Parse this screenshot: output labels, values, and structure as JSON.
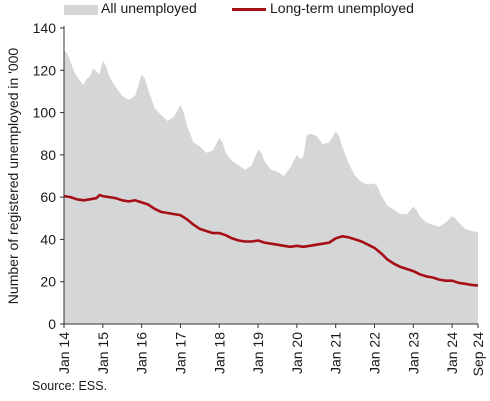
{
  "legend": {
    "all": "All unemployed",
    "long_term": "Long-term unemployed"
  },
  "source": "Source: ESS.",
  "chart_data": {
    "type": "area",
    "ylabel": "Number of registered unemployed in '000",
    "ylim": [
      0,
      140
    ],
    "yticks": [
      0,
      20,
      40,
      60,
      80,
      100,
      120,
      140
    ],
    "x_range": [
      "2014-01",
      "2024-09"
    ],
    "xticks": [
      "Jan 14",
      "Jan 15",
      "Jan 16",
      "Jan 17",
      "Jan 18",
      "Jan 19",
      "Jan 20",
      "Jan 21",
      "Jan 22",
      "Jan 23",
      "Jan 24",
      "Sep 24"
    ],
    "grid": false,
    "legend_position": "top",
    "colors": {
      "all": "#d4d6d8",
      "long_term": "#a50f15"
    },
    "series": [
      {
        "name": "All unemployed",
        "style": "area",
        "points": [
          [
            "2014-01",
            129.5
          ],
          [
            "2014-02",
            128
          ],
          [
            "2014-03",
            124
          ],
          [
            "2014-04",
            120
          ],
          [
            "2014-05",
            117
          ],
          [
            "2014-06",
            115
          ],
          [
            "2014-07",
            113
          ],
          [
            "2014-08",
            116
          ],
          [
            "2014-09",
            117
          ],
          [
            "2014-10",
            121
          ],
          [
            "2014-12",
            118
          ],
          [
            "2015-01",
            124.5
          ],
          [
            "2015-02",
            122
          ],
          [
            "2015-03",
            117
          ],
          [
            "2015-05",
            112
          ],
          [
            "2015-07",
            108
          ],
          [
            "2015-09",
            106
          ],
          [
            "2015-11",
            108
          ],
          [
            "2016-01",
            118
          ],
          [
            "2016-02",
            116
          ],
          [
            "2016-03",
            111
          ],
          [
            "2016-05",
            102
          ],
          [
            "2016-07",
            99
          ],
          [
            "2016-09",
            96
          ],
          [
            "2016-11",
            98
          ],
          [
            "2017-01",
            103.5
          ],
          [
            "2017-02",
            100
          ],
          [
            "2017-03",
            94
          ],
          [
            "2017-05",
            86
          ],
          [
            "2017-07",
            84
          ],
          [
            "2017-09",
            81
          ],
          [
            "2017-11",
            82
          ],
          [
            "2018-01",
            88
          ],
          [
            "2018-02",
            86
          ],
          [
            "2018-03",
            81
          ],
          [
            "2018-05",
            77
          ],
          [
            "2018-07",
            75
          ],
          [
            "2018-09",
            73
          ],
          [
            "2018-11",
            75
          ],
          [
            "2019-01",
            82.5
          ],
          [
            "2019-02",
            81
          ],
          [
            "2019-03",
            77
          ],
          [
            "2019-05",
            73
          ],
          [
            "2019-07",
            72
          ],
          [
            "2019-09",
            70
          ],
          [
            "2019-11",
            74
          ],
          [
            "2020-01",
            80
          ],
          [
            "2020-02",
            78
          ],
          [
            "2020-03",
            79
          ],
          [
            "2020-04",
            89
          ],
          [
            "2020-05",
            90
          ],
          [
            "2020-07",
            89
          ],
          [
            "2020-09",
            85
          ],
          [
            "2020-11",
            86
          ],
          [
            "2021-01",
            91
          ],
          [
            "2021-02",
            89
          ],
          [
            "2021-03",
            84
          ],
          [
            "2021-05",
            76
          ],
          [
            "2021-07",
            70
          ],
          [
            "2021-09",
            67
          ],
          [
            "2021-11",
            66
          ],
          [
            "2022-01",
            66.5
          ],
          [
            "2022-02",
            65
          ],
          [
            "2022-03",
            61
          ],
          [
            "2022-05",
            56
          ],
          [
            "2022-07",
            54
          ],
          [
            "2022-09",
            52
          ],
          [
            "2022-11",
            52
          ],
          [
            "2023-01",
            55.5
          ],
          [
            "2023-02",
            54
          ],
          [
            "2023-03",
            51
          ],
          [
            "2023-05",
            48
          ],
          [
            "2023-07",
            47
          ],
          [
            "2023-09",
            46
          ],
          [
            "2023-11",
            48
          ],
          [
            "2024-01",
            51
          ],
          [
            "2024-02",
            50
          ],
          [
            "2024-03",
            48
          ],
          [
            "2024-05",
            45
          ],
          [
            "2024-07",
            44
          ],
          [
            "2024-09",
            43.5
          ]
        ]
      },
      {
        "name": "Long-term unemployed",
        "style": "line",
        "points": [
          [
            "2014-01",
            60.5
          ],
          [
            "2014-03",
            60
          ],
          [
            "2014-05",
            59
          ],
          [
            "2014-07",
            58.5
          ],
          [
            "2014-09",
            59
          ],
          [
            "2014-11",
            59.5
          ],
          [
            "2014-12",
            61
          ],
          [
            "2015-01",
            60.5
          ],
          [
            "2015-03",
            60
          ],
          [
            "2015-05",
            59.5
          ],
          [
            "2015-07",
            58.5
          ],
          [
            "2015-09",
            58
          ],
          [
            "2015-11",
            58.5
          ],
          [
            "2016-01",
            57.5
          ],
          [
            "2016-03",
            56.5
          ],
          [
            "2016-05",
            54.5
          ],
          [
            "2016-07",
            53
          ],
          [
            "2016-09",
            52.5
          ],
          [
            "2016-11",
            52
          ],
          [
            "2017-01",
            51.5
          ],
          [
            "2017-03",
            49.5
          ],
          [
            "2017-05",
            47
          ],
          [
            "2017-07",
            45
          ],
          [
            "2017-09",
            44
          ],
          [
            "2017-11",
            43
          ],
          [
            "2018-01",
            43
          ],
          [
            "2018-03",
            42
          ],
          [
            "2018-05",
            40.5
          ],
          [
            "2018-07",
            39.5
          ],
          [
            "2018-09",
            39
          ],
          [
            "2018-11",
            39
          ],
          [
            "2019-01",
            39.5
          ],
          [
            "2019-03",
            38.5
          ],
          [
            "2019-05",
            38
          ],
          [
            "2019-07",
            37.5
          ],
          [
            "2019-09",
            37
          ],
          [
            "2019-11",
            36.5
          ],
          [
            "2020-01",
            37
          ],
          [
            "2020-03",
            36.5
          ],
          [
            "2020-05",
            37
          ],
          [
            "2020-07",
            37.5
          ],
          [
            "2020-09",
            38
          ],
          [
            "2020-11",
            38.5
          ],
          [
            "2021-01",
            40.5
          ],
          [
            "2021-03",
            41.5
          ],
          [
            "2021-05",
            41
          ],
          [
            "2021-07",
            40
          ],
          [
            "2021-09",
            39
          ],
          [
            "2021-11",
            37.5
          ],
          [
            "2022-01",
            36
          ],
          [
            "2022-03",
            33.5
          ],
          [
            "2022-05",
            30.5
          ],
          [
            "2022-07",
            28.5
          ],
          [
            "2022-09",
            27
          ],
          [
            "2022-11",
            26
          ],
          [
            "2023-01",
            25
          ],
          [
            "2023-03",
            23.5
          ],
          [
            "2023-05",
            22.5
          ],
          [
            "2023-07",
            22
          ],
          [
            "2023-09",
            21
          ],
          [
            "2023-11",
            20.5
          ],
          [
            "2024-01",
            20.5
          ],
          [
            "2024-03",
            19.5
          ],
          [
            "2024-05",
            19
          ],
          [
            "2024-07",
            18.5
          ],
          [
            "2024-09",
            18.2
          ]
        ]
      }
    ]
  }
}
